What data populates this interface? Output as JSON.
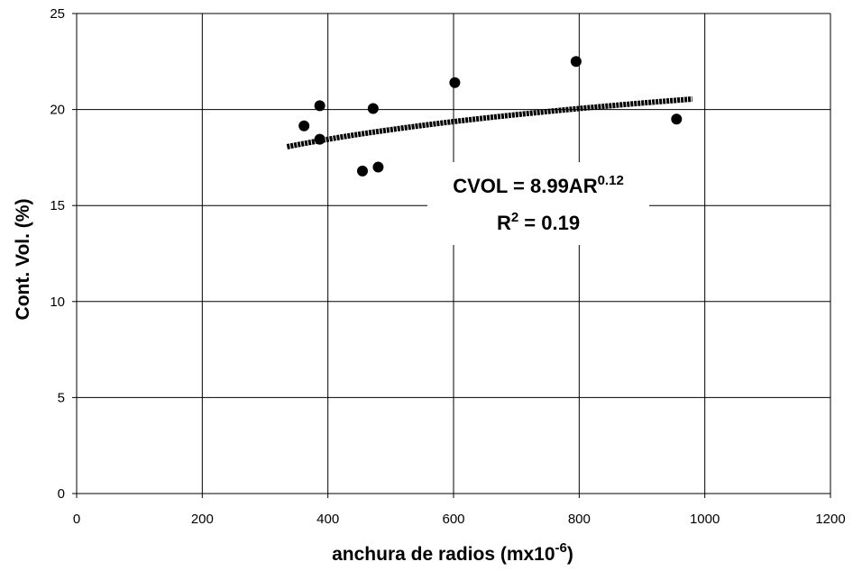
{
  "chart_data": {
    "type": "scatter",
    "xlabel": "anchura de radios (mx10",
    "xlabel_sup": "-6",
    "xlabel_end": ")",
    "ylabel": "Cont. Vol. (%)",
    "xlim": [
      0,
      1200
    ],
    "ylim": [
      0,
      25
    ],
    "xticks": [
      "0",
      "200",
      "400",
      "600",
      "800",
      "1000",
      "1200"
    ],
    "yticks": [
      "0",
      "5",
      "10",
      "15",
      "20",
      "25"
    ],
    "grid": true,
    "points": [
      {
        "x": 362,
        "y": 19.15
      },
      {
        "x": 387,
        "y": 20.2
      },
      {
        "x": 387,
        "y": 18.45
      },
      {
        "x": 455,
        "y": 16.8
      },
      {
        "x": 472,
        "y": 20.05
      },
      {
        "x": 480,
        "y": 17.0
      },
      {
        "x": 602,
        "y": 21.4
      },
      {
        "x": 795,
        "y": 22.5
      },
      {
        "x": 955,
        "y": 19.5
      }
    ],
    "trendline": {
      "type": "power",
      "coef": 8.99,
      "exponent": 0.12,
      "x_range": [
        335,
        980
      ]
    },
    "annotation": {
      "eq_main": "CVOL = 8.99AR",
      "eq_sup": "0.12",
      "r2_main": "R",
      "r2_sup": "2",
      "r2_end": " = 0.19"
    }
  }
}
